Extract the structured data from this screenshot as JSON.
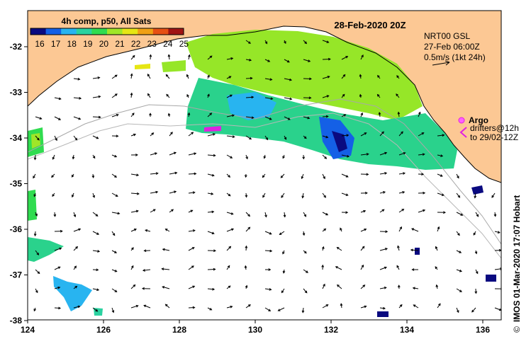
{
  "map": {
    "title": "28-Feb-2020 20Z",
    "colorbar": {
      "label": "4h comp, p50, All Sats",
      "ticks": [
        "16",
        "17",
        "18",
        "19",
        "20",
        "21",
        "22",
        "23",
        "24",
        "25"
      ],
      "colors": [
        "#0a0a80",
        "#1460e6",
        "#28b4f0",
        "#2ad2a0",
        "#30dc50",
        "#a0e628",
        "#e6e614",
        "#f0a014",
        "#e65014",
        "#a01414"
      ]
    },
    "current_info": {
      "line1": "NRT00 GSL",
      "line2": "27-Feb 06:00Z",
      "line3": "0.5m/s (1kt 24h)"
    },
    "legend": {
      "argo_label": "Argo",
      "drifters_line1": "drifters@12h",
      "drifters_line2": "to 29/02-12Z"
    },
    "x_ticks": [
      "124",
      "126",
      "128",
      "130",
      "132",
      "134",
      "136"
    ],
    "y_ticks": [
      "-32",
      "-33",
      "-34",
      "-35",
      "-36",
      "-37",
      "-38"
    ],
    "credit": {
      "copyright": "©",
      "text": "IMOS 01-Mar-2020 17:07 Hobart"
    },
    "colors": {
      "land": "#fcc894",
      "ocean": "#ffffff",
      "argo": "#e020e0"
    }
  }
}
